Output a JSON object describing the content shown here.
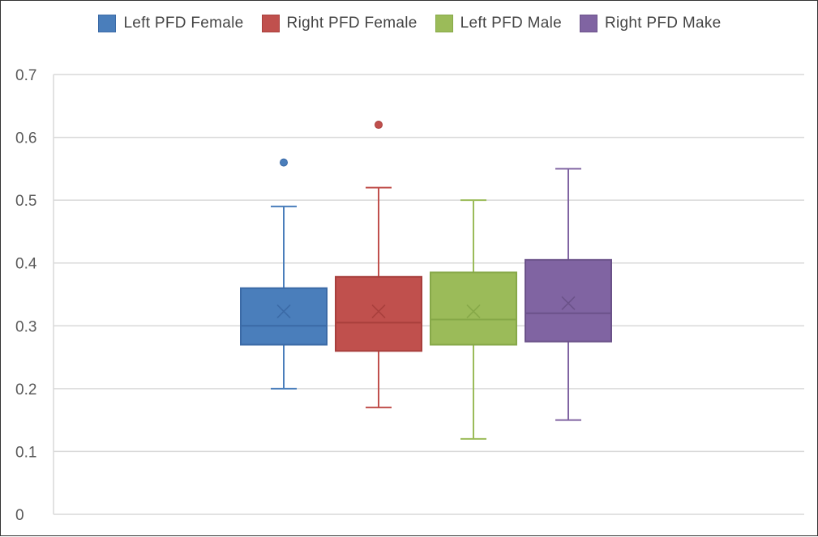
{
  "chart_data": {
    "type": "box",
    "title": "",
    "xlabel": "",
    "ylabel": "",
    "ylim": [
      0,
      0.7
    ],
    "yticks": [
      0,
      0.1,
      0.2,
      0.3,
      0.4,
      0.5,
      0.6,
      0.7
    ],
    "ytick_labels": [
      "0",
      "0.1",
      "0.2",
      "0.3",
      "0.4",
      "0.5",
      "0.6",
      "0.7"
    ],
    "grid": true,
    "legend_position": "top-center",
    "series": [
      {
        "name": "Left PFD Female",
        "color": "#4a7ebb",
        "edge": "#3b6aa6",
        "min": 0.2,
        "q1": 0.27,
        "median": 0.3,
        "mean": 0.323,
        "q3": 0.36,
        "max": 0.49,
        "outliers": [
          0.56
        ]
      },
      {
        "name": "Right PFD Female",
        "color": "#c0504d",
        "edge": "#a83f3c",
        "min": 0.17,
        "q1": 0.26,
        "median": 0.305,
        "mean": 0.323,
        "q3": 0.378,
        "max": 0.52,
        "outliers": [
          0.62
        ]
      },
      {
        "name": "Left PFD Male",
        "color": "#9bbb59",
        "edge": "#86a848",
        "min": 0.12,
        "q1": 0.27,
        "median": 0.31,
        "mean": 0.323,
        "q3": 0.385,
        "max": 0.5,
        "outliers": []
      },
      {
        "name": "Right PFD Make",
        "color": "#8064a2",
        "edge": "#6b5289",
        "min": 0.15,
        "q1": 0.275,
        "median": 0.32,
        "mean": 0.336,
        "q3": 0.405,
        "max": 0.55,
        "outliers": []
      }
    ]
  }
}
